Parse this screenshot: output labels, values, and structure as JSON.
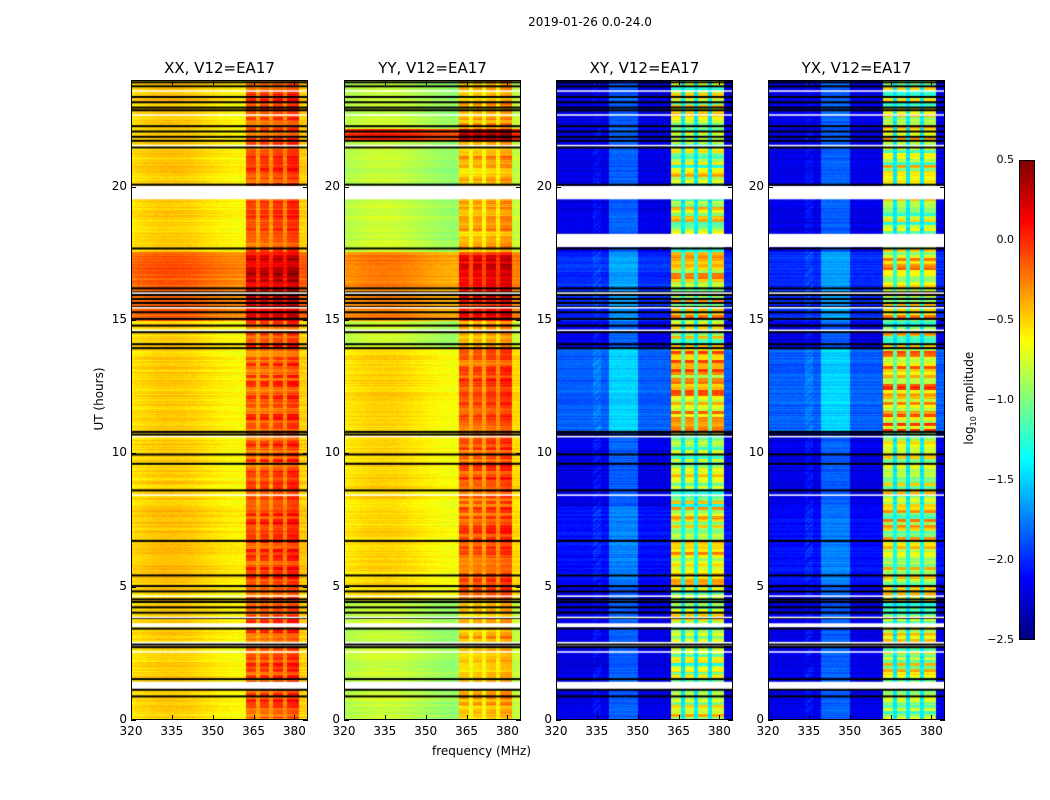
{
  "chart_data": {
    "type": "heatmap",
    "title": "2019-01-26 0.0-24.0",
    "xlabel": "frequency (MHz)",
    "ylabel": "UT (hours)",
    "xlim": [
      320,
      385
    ],
    "ylim": [
      0,
      24
    ],
    "xticks": [
      "320",
      "335",
      "350",
      "365",
      "380"
    ],
    "xtick_values": [
      320,
      335,
      350,
      365,
      380
    ],
    "yticks": [
      "0",
      "5",
      "10",
      "15",
      "20"
    ],
    "ytick_values": [
      0,
      5,
      10,
      15,
      20
    ],
    "colormap": "jet",
    "colorbar": {
      "label": "log10 amplitude",
      "label_main": "log",
      "label_sub": "10",
      "label_rest": " amplitude",
      "range": [
        -2.5,
        0.5
      ],
      "ticks": [
        "0.5",
        "0.0",
        "−0.5",
        "−1.0",
        "−1.5",
        "−2.0",
        "−2.5"
      ],
      "tick_values": [
        0.5,
        0.0,
        -0.5,
        -1.0,
        -1.5,
        -2.0,
        -2.5
      ]
    },
    "rfi_band_mhz": [
      362,
      382
    ],
    "band_gaps_mhz": [
      366.5,
      371.5,
      376.5
    ],
    "flagged_hours": [
      [
        19.55,
        20.05
      ],
      [
        2.75,
        2.9
      ],
      [
        3.45,
        3.6
      ],
      [
        1.1,
        1.4
      ]
    ],
    "flagged_hours_cross_only": [
      [
        17.75,
        18.25
      ]
    ],
    "gap_line_hours": [
      23.95,
      23.8,
      23.4,
      23.2,
      23.0,
      22.9,
      22.3,
      22.1,
      21.9,
      21.75,
      21.5,
      20.1,
      17.7,
      16.2,
      16.05,
      15.95,
      15.8,
      15.65,
      15.5,
      15.3,
      15.05,
      14.8,
      14.55,
      14.1,
      13.95,
      10.8,
      10.7,
      9.95,
      9.6,
      8.6,
      6.7,
      5.4,
      5.0,
      4.8,
      4.5,
      4.4,
      4.2,
      4.0,
      3.8,
      3.4,
      2.8,
      2.7,
      1.5,
      1.1,
      0.85
    ],
    "panels": [
      {
        "title": "XX, V12=EA17",
        "base": -0.55,
        "band": 0.6,
        "segments": [
          {
            "t": [
              15.0,
              17.6
            ],
            "offset": 0.35
          },
          {
            "t": [
              5.0,
              8.0
            ],
            "offset": 0.05
          },
          {
            "t": [
              20.1,
              24
            ],
            "offset": 0.02
          }
        ]
      },
      {
        "title": "YY, V12=EA17",
        "base": -0.85,
        "band": 0.6,
        "segments": [
          {
            "t": [
              15.0,
              17.6
            ],
            "offset": 0.55
          },
          {
            "t": [
              4.5,
              14.0
            ],
            "offset": 0.28
          },
          {
            "t": [
              21.8,
              22.2
            ],
            "offset": 0.8
          }
        ]
      },
      {
        "title": "XY, V12=EA17",
        "base": -2.2,
        "band": 1.7,
        "segments": [
          {
            "t": [
              15.0,
              17.6
            ],
            "offset": 0.2
          },
          {
            "t": [
              10.8,
              14.0
            ],
            "offset": 0.35
          },
          {
            "t": [
              5.0,
              8.0
            ],
            "offset": 0.1
          }
        ]
      },
      {
        "title": "YX, V12=EA17",
        "base": -2.2,
        "band": 1.7,
        "segments": [
          {
            "t": [
              15.0,
              17.6
            ],
            "offset": 0.2
          },
          {
            "t": [
              10.8,
              14.0
            ],
            "offset": 0.35
          },
          {
            "t": [
              5.0,
              8.0
            ],
            "offset": 0.1
          }
        ]
      }
    ]
  }
}
